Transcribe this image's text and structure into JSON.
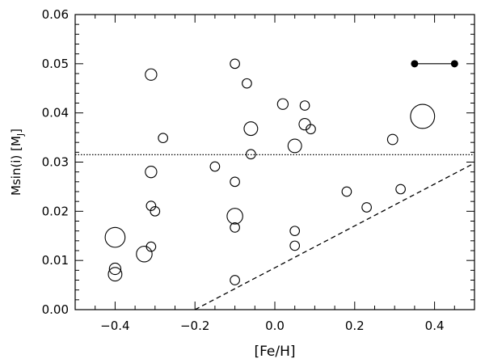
{
  "chart_data": {
    "type": "scatter",
    "xlabel": "[Fe/H]",
    "ylabel": "Msin(i)  [M",
    "ylabel_sub": "J",
    "ylabel_close": "]",
    "xlim": [
      -0.5,
      0.5
    ],
    "ylim": [
      0.0,
      0.06
    ],
    "x_ticks": [
      -0.4,
      -0.2,
      0.0,
      0.2,
      0.4
    ],
    "x_tick_labels": [
      "−0.4",
      "−0.2",
      "0.0",
      "0.2",
      "0.4"
    ],
    "x_minor_step": 0.05,
    "y_ticks": [
      0.0,
      0.01,
      0.02,
      0.03,
      0.04,
      0.05,
      0.06
    ],
    "y_tick_labels": [
      "0.00",
      "0.01",
      "0.02",
      "0.03",
      "0.04",
      "0.05",
      "0.06"
    ],
    "y_minor_step": 0.002,
    "grid": false,
    "points": [
      {
        "x": -0.4,
        "y": 0.0147,
        "size": 3
      },
      {
        "x": -0.4,
        "y": 0.0083,
        "size": 1
      },
      {
        "x": -0.4,
        "y": 0.0072,
        "size": 1.5
      },
      {
        "x": -0.327,
        "y": 0.0113,
        "size": 2
      },
      {
        "x": -0.31,
        "y": 0.0478,
        "size": 1
      },
      {
        "x": -0.31,
        "y": 0.028,
        "size": 1
      },
      {
        "x": -0.31,
        "y": 0.0211,
        "size": 0.5
      },
      {
        "x": -0.3,
        "y": 0.02,
        "size": 0.5
      },
      {
        "x": -0.31,
        "y": 0.0128,
        "size": 0.5
      },
      {
        "x": -0.28,
        "y": 0.0349,
        "size": 0.5
      },
      {
        "x": -0.15,
        "y": 0.0291,
        "size": 0.5
      },
      {
        "x": -0.1,
        "y": 0.05,
        "size": 0.5
      },
      {
        "x": -0.1,
        "y": 0.026,
        "size": 0.5
      },
      {
        "x": -0.1,
        "y": 0.019,
        "size": 2
      },
      {
        "x": -0.1,
        "y": 0.0167,
        "size": 0.5
      },
      {
        "x": -0.1,
        "y": 0.006,
        "size": 0.5
      },
      {
        "x": -0.07,
        "y": 0.046,
        "size": 0.5
      },
      {
        "x": -0.06,
        "y": 0.0368,
        "size": 1.5
      },
      {
        "x": -0.06,
        "y": 0.0316,
        "size": 0.5
      },
      {
        "x": 0.02,
        "y": 0.0418,
        "size": 0.8
      },
      {
        "x": 0.05,
        "y": 0.0333,
        "size": 1.5
      },
      {
        "x": 0.05,
        "y": 0.016,
        "size": 0.5
      },
      {
        "x": 0.05,
        "y": 0.013,
        "size": 0.5
      },
      {
        "x": 0.075,
        "y": 0.0415,
        "size": 0.5
      },
      {
        "x": 0.075,
        "y": 0.0377,
        "size": 1
      },
      {
        "x": 0.09,
        "y": 0.0367,
        "size": 0.5
      },
      {
        "x": 0.18,
        "y": 0.024,
        "size": 0.5
      },
      {
        "x": 0.23,
        "y": 0.0208,
        "size": 0.5
      },
      {
        "x": 0.295,
        "y": 0.0346,
        "size": 0.7
      },
      {
        "x": 0.315,
        "y": 0.0245,
        "size": 0.5
      },
      {
        "x": 0.37,
        "y": 0.0393,
        "size": 4
      }
    ],
    "hline": {
      "y": 0.0315,
      "style": "dotted"
    },
    "dashed_line": {
      "x": [
        -0.2,
        0.5
      ],
      "y": [
        0.0,
        0.0298
      ]
    },
    "error_bar": {
      "x": [
        0.35,
        0.45
      ],
      "y": 0.05
    }
  }
}
